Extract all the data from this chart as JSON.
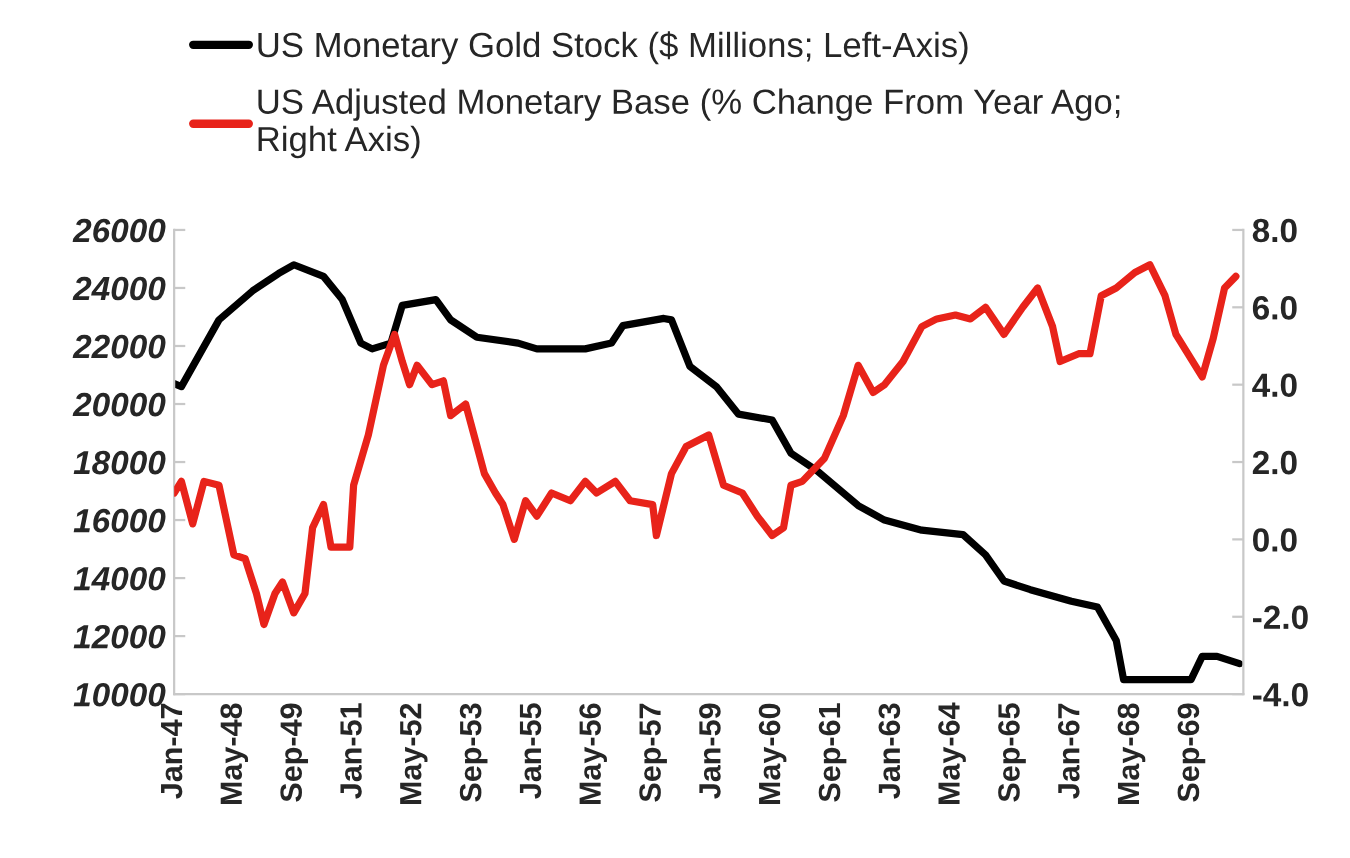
{
  "chart_data": {
    "type": "line",
    "series": [
      {
        "name": "US Monetary Gold Stock ($ Millions; Left-Axis)",
        "color": "#000000",
        "axis": "y",
        "x": [
          "1947-01",
          "1947-03",
          "1948-01",
          "1948-10",
          "1949-05",
          "1949-09",
          "1950-05",
          "1950-10",
          "1951-03",
          "1951-06",
          "1951-11",
          "1952-02",
          "1952-11",
          "1953-03",
          "1953-10",
          "1954-09",
          "1955-02",
          "1956-03",
          "1956-10",
          "1957-01",
          "1957-12",
          "1958-02",
          "1958-07",
          "1959-02",
          "1959-08",
          "1960-05",
          "1960-10",
          "1961-05",
          "1962-04",
          "1962-11",
          "1963-09",
          "1964-08",
          "1965-02",
          "1965-07",
          "1966-02",
          "1967-01",
          "1967-08",
          "1968-01",
          "1968-03",
          "1968-12",
          "1969-09",
          "1969-12",
          "1970-04",
          "1970-10"
        ],
        "values": [
          20700,
          20600,
          22900,
          23900,
          24500,
          24800,
          24400,
          23600,
          22100,
          21900,
          22100,
          23400,
          23600,
          22900,
          22300,
          22100,
          21900,
          21900,
          22100,
          22700,
          22950,
          22900,
          21300,
          20600,
          19650,
          19450,
          18300,
          17700,
          16500,
          16000,
          15650,
          15500,
          14800,
          13900,
          13600,
          13200,
          13000,
          11850,
          10500,
          10500,
          10500,
          11300,
          11300,
          11050
        ]
      },
      {
        "name": "US Adjusted Monetary Base (% Change From Year Ago;\nRight Axis)",
        "color": "#e8231a",
        "axis": "y2",
        "x": [
          "1947-01",
          "1947-03",
          "1947-06",
          "1947-09",
          "1948-01",
          "1948-05",
          "1948-08",
          "1948-11",
          "1949-01",
          "1949-04",
          "1949-06",
          "1949-09",
          "1949-12",
          "1950-02",
          "1950-05",
          "1950-07",
          "1950-12",
          "1951-01",
          "1951-05",
          "1951-09",
          "1951-12",
          "1952-02",
          "1952-04",
          "1952-06",
          "1952-10",
          "1953-01",
          "1953-03",
          "1953-07",
          "1953-12",
          "1954-03",
          "1954-05",
          "1954-08",
          "1954-11",
          "1955-02",
          "1955-06",
          "1955-11",
          "1956-03",
          "1956-06",
          "1956-11",
          "1957-03",
          "1957-09",
          "1957-10",
          "1958-02",
          "1958-06",
          "1958-12",
          "1959-04",
          "1959-09",
          "1960-01",
          "1960-05",
          "1960-08",
          "1960-10",
          "1961-01",
          "1961-07",
          "1961-12",
          "1962-04",
          "1962-08",
          "1962-11",
          "1963-04",
          "1963-09",
          "1964-01",
          "1964-06",
          "1964-10",
          "1965-02",
          "1965-07",
          "1965-12",
          "1966-04",
          "1966-08",
          "1966-10",
          "1967-03",
          "1967-06",
          "1967-09",
          "1968-01",
          "1968-06",
          "1968-10",
          "1969-02",
          "1969-05",
          "1969-12",
          "1970-03",
          "1970-06",
          "1970-09"
        ],
        "values": [
          1.2,
          1.5,
          0.4,
          1.5,
          1.4,
          -0.4,
          -0.5,
          -1.4,
          -2.2,
          -1.4,
          -1.1,
          -1.9,
          -1.4,
          0.3,
          0.9,
          -0.2,
          -0.2,
          1.4,
          2.7,
          4.5,
          5.3,
          4.6,
          4.0,
          4.5,
          4.0,
          4.1,
          3.2,
          3.5,
          1.7,
          1.2,
          0.9,
          0.0,
          1.0,
          0.6,
          1.2,
          1.0,
          1.5,
          1.2,
          1.5,
          1.0,
          0.9,
          0.1,
          1.7,
          2.4,
          2.7,
          1.4,
          1.2,
          0.6,
          0.1,
          0.3,
          1.4,
          1.5,
          2.1,
          3.2,
          4.5,
          3.8,
          4.0,
          4.6,
          5.5,
          5.7,
          5.8,
          5.7,
          6.0,
          5.3,
          6.0,
          6.5,
          5.5,
          4.6,
          4.8,
          4.8,
          6.3,
          6.5,
          6.9,
          7.1,
          6.3,
          5.3,
          4.2,
          5.2,
          6.5,
          6.8
        ]
      }
    ],
    "xlim": [
      "1947-01",
      "1970-11"
    ],
    "xticks": [
      {
        "value": "1947-01",
        "label": "Jan-47"
      },
      {
        "value": "1948-05",
        "label": "May-48"
      },
      {
        "value": "1949-09",
        "label": "Sep-49"
      },
      {
        "value": "1951-01",
        "label": "Jan-51"
      },
      {
        "value": "1952-05",
        "label": "May-52"
      },
      {
        "value": "1953-09",
        "label": "Sep-53"
      },
      {
        "value": "1955-01",
        "label": "Jan-55"
      },
      {
        "value": "1956-05",
        "label": "May-56"
      },
      {
        "value": "1957-09",
        "label": "Sep-57"
      },
      {
        "value": "1959-01",
        "label": "Jan-59"
      },
      {
        "value": "1960-05",
        "label": "May-60"
      },
      {
        "value": "1961-09",
        "label": "Sep-61"
      },
      {
        "value": "1963-01",
        "label": "Jan-63"
      },
      {
        "value": "1964-05",
        "label": "May-64"
      },
      {
        "value": "1965-09",
        "label": "Sep-65"
      },
      {
        "value": "1967-01",
        "label": "Jan-67"
      },
      {
        "value": "1968-05",
        "label": "May-68"
      },
      {
        "value": "1969-09",
        "label": "Sep-69"
      }
    ],
    "ylim": [
      10000,
      26000
    ],
    "yticks": [
      10000,
      12000,
      14000,
      16000,
      18000,
      20000,
      22000,
      24000,
      26000
    ],
    "y2lim": [
      -4,
      8
    ],
    "y2ticks": [
      {
        "value": -4,
        "label": "-4.0"
      },
      {
        "value": -2,
        "label": "-2.0"
      },
      {
        "value": 0,
        "label": "0.0"
      },
      {
        "value": 2,
        "label": "2.0"
      },
      {
        "value": 4,
        "label": "4.0"
      },
      {
        "value": 6,
        "label": "6.0"
      },
      {
        "value": 8,
        "label": "8.0"
      }
    ],
    "grid": false,
    "legend": "top left",
    "line_style": "solid"
  }
}
